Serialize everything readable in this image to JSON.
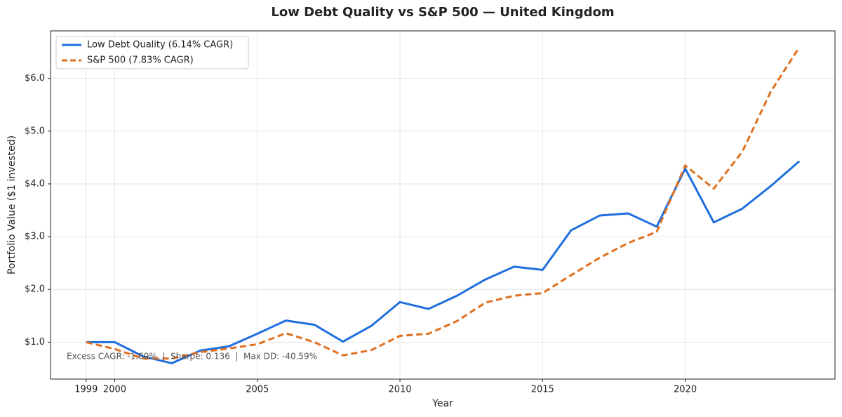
{
  "chart_data": {
    "type": "line",
    "title": "Low Debt Quality vs S&P 500 — United Kingdom",
    "xlabel": "Year",
    "ylabel": "Portfolio Value ($1 invested)",
    "annotation": "Excess CAGR: -1.69%  |  Sharpe: 0.136  |  Max DD: -40.59%",
    "x": [
      1999,
      2000,
      2001,
      2002,
      2003,
      2004,
      2005,
      2006,
      2007,
      2008,
      2009,
      2010,
      2011,
      2012,
      2013,
      2014,
      2015,
      2016,
      2017,
      2018,
      2019,
      2020,
      2021,
      2022,
      2023,
      2024
    ],
    "series": [
      {
        "name": "Low Debt Quality (6.14% CAGR)",
        "color": "#1f6fde",
        "linestyle": "solid",
        "values": [
          1.0,
          1.0,
          0.73,
          0.6,
          0.84,
          0.92,
          1.16,
          1.41,
          1.33,
          1.01,
          1.31,
          1.76,
          1.63,
          1.88,
          2.19,
          2.43,
          2.37,
          3.12,
          3.4,
          3.44,
          3.19,
          4.29,
          3.27,
          3.53,
          3.96,
          4.43
        ]
      },
      {
        "name": "S&P 500 (7.83% CAGR)",
        "color": "#e07020",
        "linestyle": "dashed",
        "values": [
          1.0,
          0.87,
          0.69,
          0.69,
          0.81,
          0.88,
          0.96,
          1.17,
          1.0,
          0.75,
          0.85,
          1.12,
          1.16,
          1.4,
          1.75,
          1.88,
          1.93,
          2.27,
          2.6,
          2.88,
          3.09,
          4.35,
          3.91,
          4.61,
          5.75,
          6.59
        ]
      }
    ],
    "xlim": [
      1997.75,
      2025.25
    ],
    "xticks": [
      1999,
      2000,
      2005,
      2010,
      2015,
      2020
    ],
    "ylim": [
      0.3,
      6.9
    ],
    "yticks": [
      {
        "value": 1,
        "label": "$1.0"
      },
      {
        "value": 2,
        "label": "$2.0"
      },
      {
        "value": 3,
        "label": "$3.0"
      },
      {
        "value": 4,
        "label": "$4.0"
      },
      {
        "value": 5,
        "label": "$5.0"
      },
      {
        "value": 6,
        "label": "$6.0"
      }
    ],
    "grid": true,
    "legend": "upper-left"
  }
}
